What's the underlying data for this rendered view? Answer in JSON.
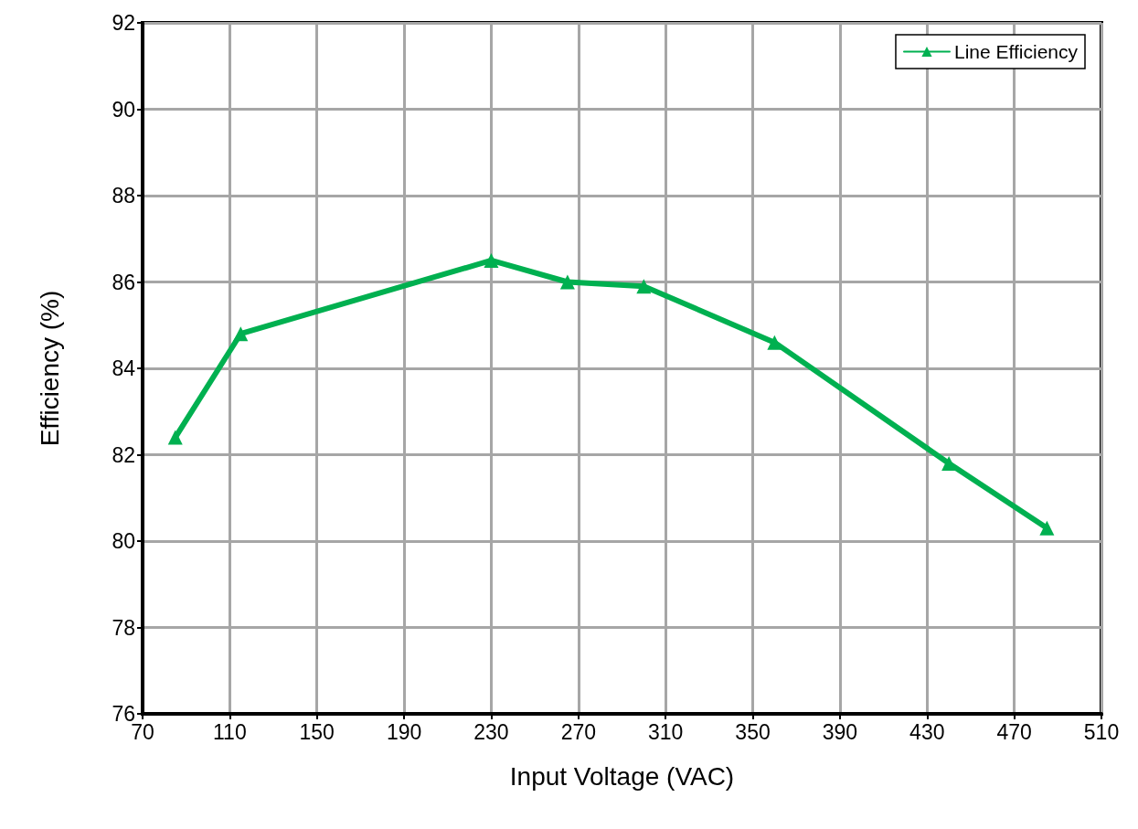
{
  "chart_data": {
    "type": "line",
    "xlabel": "Input Voltage (VAC)",
    "ylabel": "Efficiency (%)",
    "x": [
      85,
      115,
      230,
      265,
      300,
      360,
      440,
      485
    ],
    "series": [
      {
        "name": "Line Efficiency",
        "color": "#00b050",
        "values": [
          82.4,
          84.8,
          86.5,
          86.0,
          85.9,
          84.6,
          81.8,
          80.3
        ]
      }
    ],
    "xlim": [
      70,
      510
    ],
    "xticks": [
      70,
      110,
      150,
      190,
      230,
      270,
      310,
      350,
      390,
      430,
      470,
      510
    ],
    "ylim": [
      76,
      92
    ],
    "yticks": [
      76,
      78,
      80,
      82,
      84,
      86,
      88,
      90,
      92
    ],
    "grid": true,
    "legend": "top right",
    "marker": "triangle",
    "line_style": "solid"
  }
}
